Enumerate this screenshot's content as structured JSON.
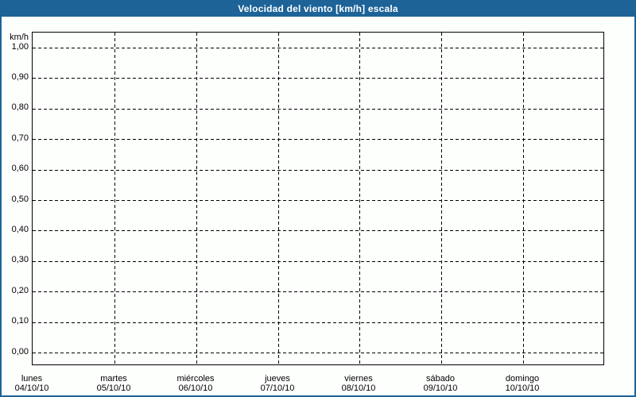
{
  "title": "Velocidad del viento [km/h] escala",
  "colors": {
    "titlebar": "#1d6398",
    "page_border": "#1d6398",
    "background": "#fdfffd",
    "grid": "#000000",
    "text": "#000000",
    "title_text": "#ffffff"
  },
  "chart_data": {
    "type": "line",
    "title": "Velocidad del viento [km/h] escala",
    "ylabel": "km/h",
    "ylim": [
      0.0,
      1.0
    ],
    "y_tick_step": 0.1,
    "y_tick_labels": [
      "1,00",
      "0,90",
      "0,80",
      "0,70",
      "0,60",
      "0,50",
      "0,40",
      "0,30",
      "0,20",
      "0,10",
      "0,00"
    ],
    "x_categories": [
      {
        "day": "lunes",
        "date": "04/10/10"
      },
      {
        "day": "martes",
        "date": "05/10/10"
      },
      {
        "day": "miércoles",
        "date": "06/10/10"
      },
      {
        "day": "jueves",
        "date": "07/10/10"
      },
      {
        "day": "viernes",
        "date": "08/10/10"
      },
      {
        "day": "sábado",
        "date": "09/10/10"
      },
      {
        "day": "domingo",
        "date": "10/10/10"
      }
    ],
    "series": [],
    "grid": "dashed",
    "legend": "none"
  }
}
